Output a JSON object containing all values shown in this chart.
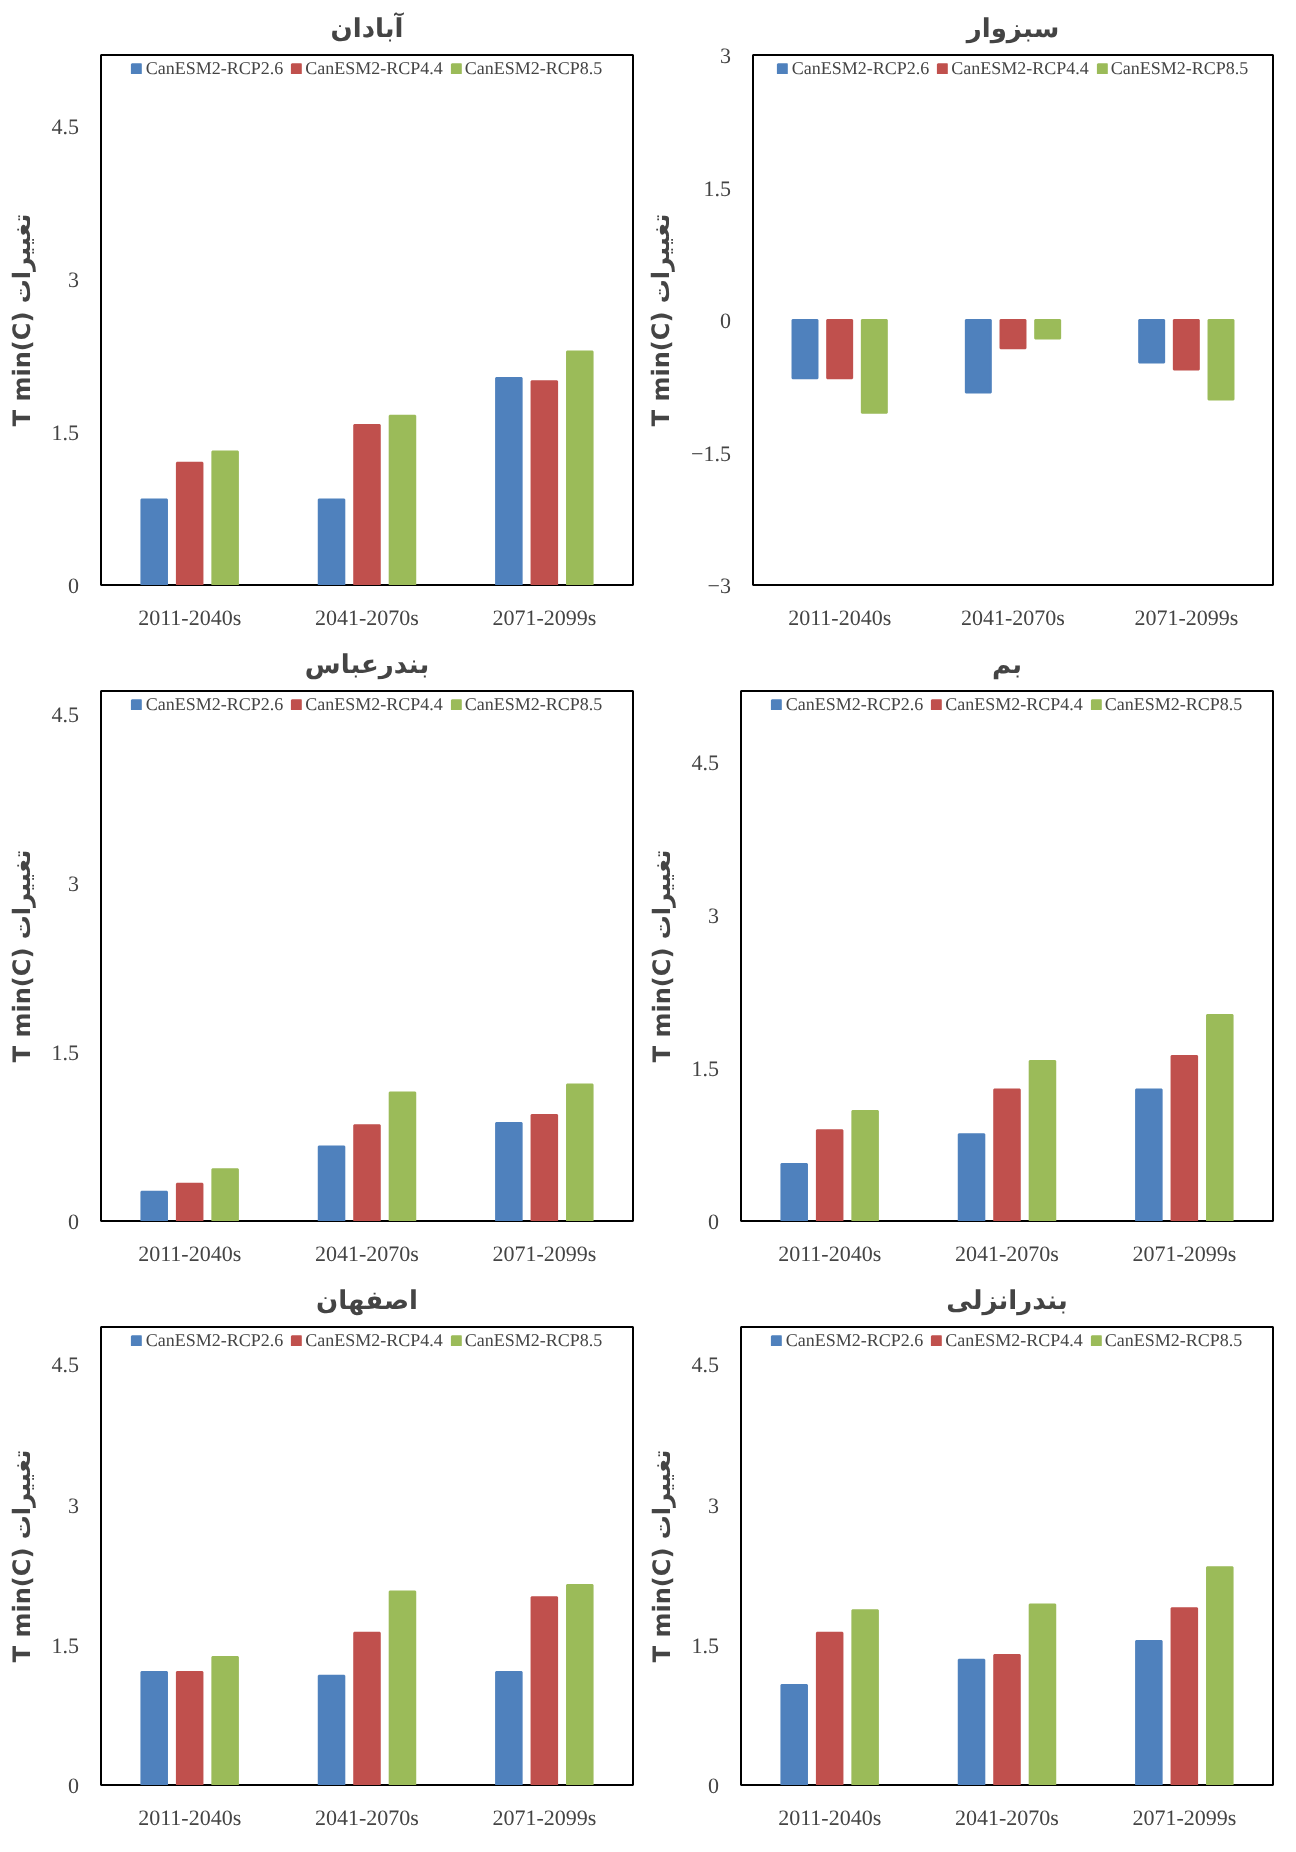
{
  "chart_data": [
    {
      "type": "bar",
      "title": "آبادان",
      "ylabel": "T min(C) تغییرات",
      "categories": [
        "2011-2040s",
        "2041-2070s",
        "2071-2099s"
      ],
      "legend": "top",
      "grid": false,
      "ylim": [
        0,
        5.2
      ],
      "yticks": [
        0,
        1.5,
        3,
        4.5
      ],
      "series": [
        {
          "name": "CanESM2-RCP2.6",
          "color": "#4f81bd",
          "values": [
            0.84,
            0.84,
            2.03
          ]
        },
        {
          "name": "CanESM2-RCP4.4",
          "color": "#c0504d",
          "values": [
            1.2,
            1.57,
            2.0
          ]
        },
        {
          "name": "CanESM2-RCP8.5",
          "color": "#9bbb59",
          "values": [
            1.31,
            1.66,
            2.29
          ]
        }
      ]
    },
    {
      "type": "bar",
      "title": "سبزوار",
      "ylabel": "T min(C) تغییرات",
      "categories": [
        "2011-2040s",
        "2041-2070s",
        "2071-2099s"
      ],
      "legend": "top",
      "grid": false,
      "ylim": [
        -3,
        3
      ],
      "yticks": [
        -3,
        -1.5,
        0,
        1.5,
        3
      ],
      "series": [
        {
          "name": "CanESM2-RCP2.6",
          "color": "#4f81bd",
          "values": [
            -0.66,
            -0.82,
            -0.48
          ]
        },
        {
          "name": "CanESM2-RCP4.4",
          "color": "#c0504d",
          "values": [
            -0.66,
            -0.32,
            -0.56
          ]
        },
        {
          "name": "CanESM2-RCP8.5",
          "color": "#9bbb59",
          "values": [
            -1.05,
            -0.21,
            -0.9
          ]
        }
      ]
    },
    {
      "type": "bar",
      "title": "بندرعباس",
      "ylabel": "T min(C) تغییرات",
      "categories": [
        "2011-2040s",
        "2041-2070s",
        "2071-2099s"
      ],
      "legend": "top",
      "grid": false,
      "ylim": [
        0,
        4.7
      ],
      "yticks": [
        0,
        1.5,
        3,
        4.5
      ],
      "series": [
        {
          "name": "CanESM2-RCP2.6",
          "color": "#4f81bd",
          "values": [
            0.26,
            0.66,
            0.87
          ]
        },
        {
          "name": "CanESM2-RCP4.4",
          "color": "#c0504d",
          "values": [
            0.33,
            0.85,
            0.94
          ]
        },
        {
          "name": "CanESM2-RCP8.5",
          "color": "#9bbb59",
          "values": [
            0.46,
            1.14,
            1.21
          ]
        }
      ]
    },
    {
      "type": "bar",
      "title": "بم",
      "ylabel": "T min(C) تغییرات",
      "categories": [
        "2011-2040s",
        "2041-2070s",
        "2071-2099s"
      ],
      "legend": "top",
      "grid": false,
      "ylim": [
        0,
        5.2
      ],
      "yticks": [
        0,
        1.5,
        3,
        4.5
      ],
      "series": [
        {
          "name": "CanESM2-RCP2.6",
          "color": "#4f81bd",
          "values": [
            0.56,
            0.85,
            1.29
          ]
        },
        {
          "name": "CanESM2-RCP4.4",
          "color": "#c0504d",
          "values": [
            0.89,
            1.29,
            1.62
          ]
        },
        {
          "name": "CanESM2-RCP8.5",
          "color": "#9bbb59",
          "values": [
            1.08,
            1.57,
            2.02
          ]
        }
      ]
    },
    {
      "type": "bar",
      "title": "اصفهان",
      "ylabel": "T min(C) تغییرات",
      "categories": [
        "2011-2040s",
        "2041-2070s",
        "2071-2099s"
      ],
      "legend": "top",
      "grid": false,
      "ylim": [
        0,
        4.9
      ],
      "yticks": [
        0,
        1.5,
        3,
        4.5
      ],
      "series": [
        {
          "name": "CanESM2-RCP2.6",
          "color": "#4f81bd",
          "values": [
            1.21,
            1.17,
            1.21
          ]
        },
        {
          "name": "CanESM2-RCP4.4",
          "color": "#c0504d",
          "values": [
            1.21,
            1.63,
            2.01
          ]
        },
        {
          "name": "CanESM2-RCP8.5",
          "color": "#9bbb59",
          "values": [
            1.37,
            2.07,
            2.14
          ]
        }
      ]
    },
    {
      "type": "bar",
      "title": "بندرانزلی",
      "ylabel": "T min(C) تغییرات",
      "categories": [
        "2011-2040s",
        "2041-2070s",
        "2071-2099s"
      ],
      "legend": "top",
      "grid": false,
      "ylim": [
        0,
        4.9
      ],
      "yticks": [
        0,
        1.5,
        3,
        4.5
      ],
      "series": [
        {
          "name": "CanESM2-RCP2.6",
          "color": "#4f81bd",
          "values": [
            1.07,
            1.34,
            1.54
          ]
        },
        {
          "name": "CanESM2-RCP4.4",
          "color": "#c0504d",
          "values": [
            1.63,
            1.39,
            1.89
          ]
        },
        {
          "name": "CanESM2-RCP8.5",
          "color": "#9bbb59",
          "values": [
            1.87,
            1.93,
            2.33
          ]
        }
      ]
    }
  ]
}
